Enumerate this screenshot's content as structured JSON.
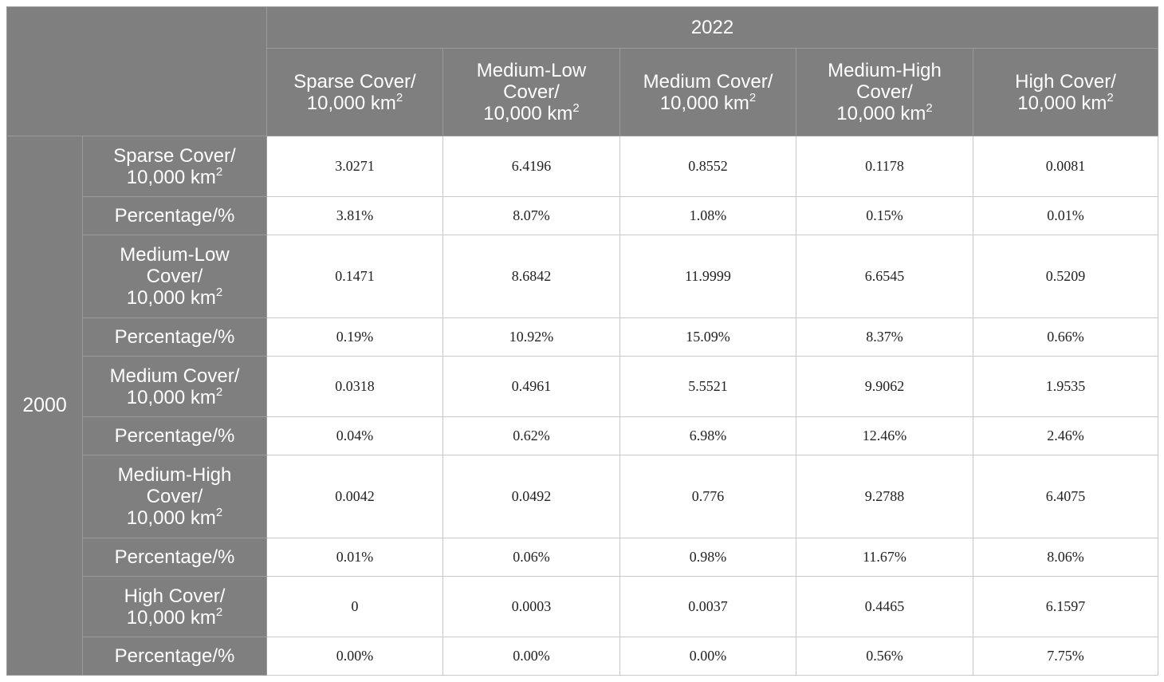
{
  "top_header": {
    "year": "2022",
    "columns": [
      {
        "lines": [
          "Sparse Cover/",
          "10,000 km"
        ]
      },
      {
        "lines": [
          "Medium-Low",
          "Cover/",
          "10,000 km"
        ]
      },
      {
        "lines": [
          "Medium Cover/",
          "10,000 km"
        ]
      },
      {
        "lines": [
          "Medium-High",
          "Cover/",
          "10,000 km"
        ]
      },
      {
        "lines": [
          "High Cover/",
          "10,000 km"
        ]
      }
    ],
    "superscript": "2"
  },
  "row_group": {
    "year": "2000"
  },
  "rows": [
    {
      "label_lines": [
        "Sparse Cover/",
        "10,000 km"
      ],
      "sup": true,
      "values": [
        "3.0271",
        "6.4196",
        "0.8552",
        "0.1178",
        "0.0081"
      ]
    },
    {
      "label_lines": [
        "Percentage/%"
      ],
      "sup": false,
      "values": [
        "3.81%",
        "8.07%",
        "1.08%",
        "0.15%",
        "0.01%"
      ]
    },
    {
      "label_lines": [
        "Medium-Low",
        "Cover/",
        "10,000 km"
      ],
      "sup": true,
      "values": [
        "0.1471",
        "8.6842",
        "11.9999",
        "6.6545",
        "0.5209"
      ]
    },
    {
      "label_lines": [
        "Percentage/%"
      ],
      "sup": false,
      "values": [
        "0.19%",
        "10.92%",
        "15.09%",
        "8.37%",
        "0.66%"
      ]
    },
    {
      "label_lines": [
        "Medium Cover/",
        "10,000 km"
      ],
      "sup": true,
      "values": [
        "0.0318",
        "0.4961",
        "5.5521",
        "9.9062",
        "1.9535"
      ]
    },
    {
      "label_lines": [
        "Percentage/%"
      ],
      "sup": false,
      "values": [
        "0.04%",
        "0.62%",
        "6.98%",
        "12.46%",
        "2.46%"
      ]
    },
    {
      "label_lines": [
        "Medium-High",
        "Cover/",
        "10,000 km"
      ],
      "sup": true,
      "values": [
        "0.0042",
        "0.0492",
        "0.776",
        "9.2788",
        "6.4075"
      ]
    },
    {
      "label_lines": [
        "Percentage/%"
      ],
      "sup": false,
      "values": [
        "0.01%",
        "0.06%",
        "0.98%",
        "11.67%",
        "8.06%"
      ]
    },
    {
      "label_lines": [
        "High Cover/",
        "10,000 km"
      ],
      "sup": true,
      "values": [
        "0",
        "0.0003",
        "0.0037",
        "0.4465",
        "6.1597"
      ]
    },
    {
      "label_lines": [
        "Percentage/%"
      ],
      "sup": false,
      "values": [
        "0.00%",
        "0.00%",
        "0.00%",
        "0.56%",
        "7.75%"
      ]
    }
  ],
  "colors": {
    "header_bg": "#7f7f7f",
    "header_text": "#ffffff",
    "cell_text": "#222222",
    "grid": "#c8c8c8"
  }
}
